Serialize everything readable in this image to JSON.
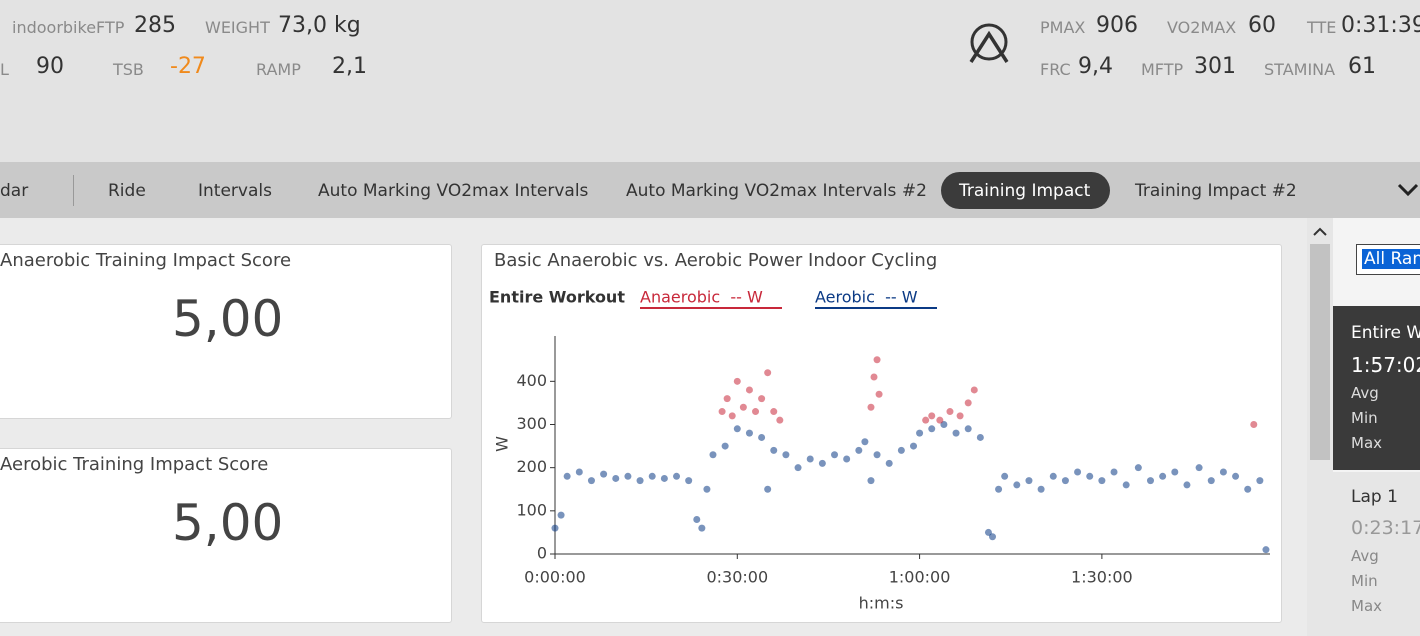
{
  "header": {
    "metrics": [
      {
        "label": "indoorbikeFTP",
        "value": 285
      },
      {
        "label": "WEIGHT",
        "value": "73,0 kg"
      },
      {
        "label": "L",
        "value": 90
      },
      {
        "label": "TSB",
        "value": -27
      },
      {
        "label": "RAMP",
        "value": "2,1"
      },
      {
        "label": "PMAX",
        "value": 906
      },
      {
        "label": "VO2MAX",
        "value": 60
      },
      {
        "label": "TTE",
        "value": "0:31:39"
      },
      {
        "label": "FRC",
        "value": "9,4"
      },
      {
        "label": "MFTP",
        "value": 301
      },
      {
        "label": "STAMINA",
        "value": 61
      }
    ]
  },
  "tabs": [
    "dar",
    "Ride",
    "Intervals",
    "Auto Marking VO2max Intervals",
    "Auto Marking VO2max Intervals #2",
    "Training Impact",
    "Training Impact #2"
  ],
  "tiles": [
    {
      "title": "Anaerobic Training Impact Score",
      "value": "5,00"
    },
    {
      "title": "Aerobic Training Impact Score",
      "value": "5,00"
    }
  ],
  "chart_data": {
    "type": "scatter",
    "title": "Basic Anaerobic vs. Aerobic Power Indoor Cycling",
    "subtitle": "Entire Workout",
    "x_label": "h:m:s",
    "y_label": "W",
    "xlim": [
      0,
      7060
    ],
    "ylim": [
      0,
      505
    ],
    "xticks": [
      {
        "value": 0,
        "label": "0:00:00"
      },
      {
        "value": 1800,
        "label": "0:30:00"
      },
      {
        "value": 3600,
        "label": "1:00:00"
      },
      {
        "value": 5400,
        "label": "1:30:00"
      }
    ],
    "yticks": [
      0,
      100,
      200,
      300,
      400
    ],
    "series": [
      {
        "name": "Anaerobic  -- W",
        "color": "#c8283a",
        "x": [
          1650,
          1700,
          1750,
          1800,
          1860,
          1920,
          1980,
          2040,
          2100,
          2160,
          2220,
          3120,
          3150,
          3180,
          3200,
          3660,
          3720,
          3800,
          3900,
          4000,
          4080,
          4140,
          6900
        ],
        "values": [
          330,
          360,
          320,
          400,
          340,
          380,
          330,
          360,
          420,
          330,
          310,
          340,
          410,
          450,
          370,
          310,
          320,
          310,
          330,
          320,
          350,
          380,
          300
        ]
      },
      {
        "name": "Aerobic  -- W",
        "color": "#0b3a85",
        "x": [
          0,
          60,
          120,
          240,
          360,
          480,
          600,
          720,
          840,
          960,
          1080,
          1200,
          1320,
          1400,
          1450,
          1500,
          1560,
          1680,
          1800,
          1920,
          2040,
          2100,
          2160,
          2280,
          2400,
          2520,
          2640,
          2760,
          2880,
          3000,
          3060,
          3120,
          3180,
          3300,
          3420,
          3540,
          3600,
          3720,
          3840,
          3960,
          4080,
          4200,
          4280,
          4320,
          4380,
          4440,
          4560,
          4680,
          4800,
          4920,
          5040,
          5160,
          5280,
          5400,
          5520,
          5640,
          5760,
          5880,
          6000,
          6120,
          6240,
          6360,
          6480,
          6600,
          6720,
          6840,
          6960,
          7020
        ],
        "values": [
          60,
          90,
          180,
          190,
          170,
          185,
          175,
          180,
          170,
          180,
          175,
          180,
          170,
          80,
          60,
          150,
          230,
          250,
          290,
          280,
          270,
          150,
          240,
          230,
          200,
          220,
          210,
          230,
          220,
          240,
          260,
          170,
          230,
          210,
          240,
          250,
          280,
          290,
          300,
          280,
          290,
          270,
          50,
          40,
          150,
          180,
          160,
          170,
          150,
          180,
          170,
          190,
          180,
          170,
          190,
          160,
          200,
          170,
          180,
          190,
          160,
          200,
          170,
          190,
          180,
          150,
          170,
          10
        ]
      }
    ]
  },
  "side": {
    "selector": "All Ran",
    "entire": {
      "title": "Entire Wo",
      "time": "1:57:02",
      "rows": [
        "Avg",
        "Min",
        "Max"
      ]
    },
    "lap": {
      "title": "Lap 1",
      "time": "0:23:17,",
      "rows": [
        "Avg",
        "Min",
        "Max"
      ]
    }
  }
}
